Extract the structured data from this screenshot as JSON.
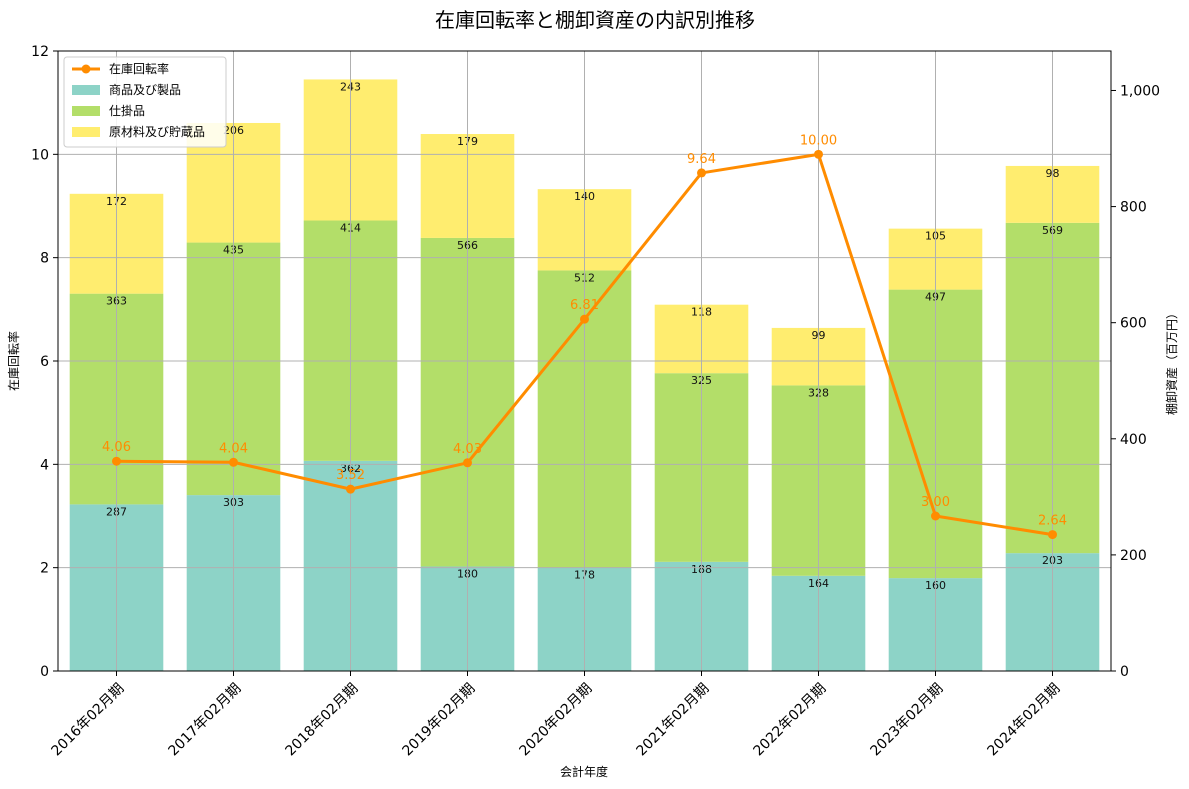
{
  "chart_data": {
    "type": "bar",
    "title": "在庫回転率と棚卸資産の内訳別推移",
    "xlabel": "会計年度",
    "ylabel_left": "在庫回転率",
    "ylabel_right": "棚卸資産（百万円）",
    "categories": [
      "2016年02月期",
      "2017年02月期",
      "2018年02月期",
      "2019年02月期",
      "2020年02月期",
      "2021年02月期",
      "2022年02月期",
      "2023年02月期",
      "2024年02月期"
    ],
    "stacked_series": [
      {
        "name": "商品及び製品",
        "color": "#8dd3c7",
        "values": [
          287,
          303,
          362,
          180,
          178,
          188,
          164,
          160,
          203
        ]
      },
      {
        "name": "仕掛品",
        "color": "#b3de69",
        "values": [
          363,
          435,
          414,
          566,
          512,
          325,
          328,
          497,
          569
        ]
      },
      {
        "name": "原材料及び貯蔵品",
        "color": "#ffed6f",
        "values": [
          172,
          206,
          243,
          179,
          140,
          118,
          99,
          105,
          98
        ]
      }
    ],
    "line_series": {
      "name": "在庫回転率",
      "color": "#ff8c00",
      "values": [
        4.06,
        4.04,
        3.52,
        4.03,
        6.81,
        9.64,
        10.0,
        3.0,
        2.64
      ],
      "labels": [
        "4.06",
        "4.04",
        "3.52",
        "4.03",
        "6.81",
        "9.64",
        "10.00",
        "3.00",
        "2.64"
      ]
    },
    "ylim_left": [
      0,
      12
    ],
    "yticks_left": [
      0,
      2,
      4,
      6,
      8,
      10,
      12
    ],
    "ylim_right": [
      0,
      1068
    ],
    "yticks_right": [
      0,
      200,
      400,
      600,
      800,
      1000
    ],
    "yticks_right_labels": [
      "0",
      "200",
      "400",
      "600",
      "800",
      "1,000"
    ],
    "grid": true,
    "legend_position": "top-left"
  }
}
